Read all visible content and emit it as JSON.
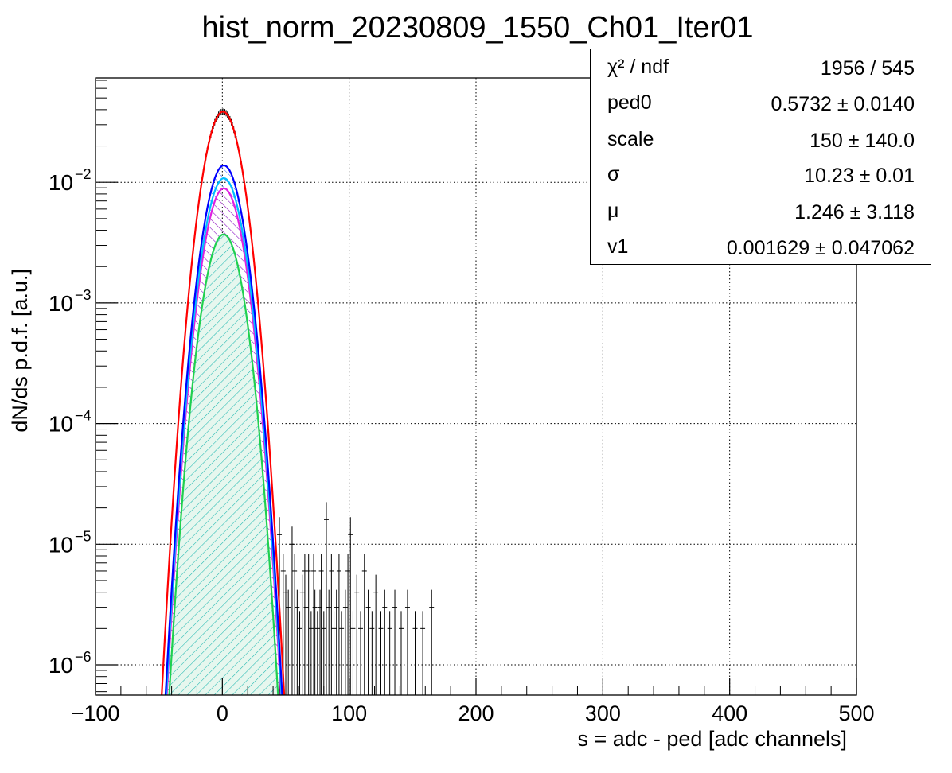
{
  "title": "hist_norm_20230809_1550_Ch01_Iter01",
  "xlabel": "s = adc - ped [adc channels]",
  "ylabel": "dN/ds p.d.f. [a.u.]",
  "stats": [
    {
      "name": "χ² / ndf",
      "value": "1956 / 545"
    },
    {
      "name": "ped0",
      "value": "0.5732 ± 0.0140"
    },
    {
      "name": "scale",
      "value": "150 ± 140.0"
    },
    {
      "name": "σ",
      "value": "10.23 ± 0.01"
    },
    {
      "name": "μ",
      "value": "1.246 ± 3.118"
    },
    {
      "name": "v1",
      "value": "0.001629 ± 0.047062"
    }
  ],
  "colors": {
    "total": "#ff0000",
    "blue": "#0000ff",
    "cyan": "#00bfff",
    "magenta": "#e020e0",
    "green": "#20d050",
    "data": "#000000"
  },
  "chart_data": {
    "type": "histogram",
    "log_y": true,
    "grid": true,
    "xlim": [
      -100,
      500
    ],
    "ylim": [
      5.5e-07,
      0.07
    ],
    "x_ticks": [
      {
        "v": -100,
        "label": "−100"
      },
      {
        "v": 0,
        "label": "0"
      },
      {
        "v": 100,
        "label": "100"
      },
      {
        "v": 200,
        "label": "200"
      },
      {
        "v": 300,
        "label": "300"
      },
      {
        "v": 400,
        "label": "400"
      },
      {
        "v": 500,
        "label": "500"
      }
    ],
    "y_ticks": [
      {
        "v": 1e-06,
        "base": "10",
        "exp": "−6"
      },
      {
        "v": 1e-05,
        "base": "10",
        "exp": "−5"
      },
      {
        "v": 0.0001,
        "base": "10",
        "exp": "−4"
      },
      {
        "v": 0.001,
        "base": "10",
        "exp": "−3"
      },
      {
        "v": 0.01,
        "base": "10",
        "exp": "−2"
      }
    ],
    "curves": [
      {
        "name": "total",
        "amp": 0.0385,
        "mu": 0.5,
        "sigma": 10.23,
        "color": "#ff0000"
      },
      {
        "name": "blue",
        "amp": 0.0138,
        "mu": 1.2,
        "sigma": 10.23,
        "color": "#0000ff",
        "hatch": "#0000ff"
      },
      {
        "name": "cyan",
        "amp": 0.0108,
        "mu": 1.2,
        "sigma": 10.23,
        "color": "#00bfff"
      },
      {
        "name": "magenta",
        "amp": 0.0089,
        "mu": 1.2,
        "sigma": 10.23,
        "color": "#e020e0",
        "hatch": "#e020e0"
      },
      {
        "name": "green",
        "amp": 0.0037,
        "mu": 1.0,
        "sigma": 10.23,
        "color": "#20d050",
        "hatch": "#20c0a0"
      }
    ],
    "tail_points": [
      {
        "x": 45,
        "y": 1.2e-05
      },
      {
        "x": 48,
        "y": 6e-06
      },
      {
        "x": 50,
        "y": 4e-06
      },
      {
        "x": 52,
        "y": 3e-06
      },
      {
        "x": 55,
        "y": 1e-05
      },
      {
        "x": 57,
        "y": 6e-06
      },
      {
        "x": 59,
        "y": 3e-06
      },
      {
        "x": 61,
        "y": 2e-06
      },
      {
        "x": 63,
        "y": 4e-06
      },
      {
        "x": 65,
        "y": 6e-06
      },
      {
        "x": 66,
        "y": 3e-06
      },
      {
        "x": 68,
        "y": 6e-06
      },
      {
        "x": 70,
        "y": 2e-06
      },
      {
        "x": 72,
        "y": 6e-06
      },
      {
        "x": 73,
        "y": 3e-06
      },
      {
        "x": 75,
        "y": 2e-06
      },
      {
        "x": 77,
        "y": 3e-06
      },
      {
        "x": 78,
        "y": 6e-06
      },
      {
        "x": 80,
        "y": 2e-06
      },
      {
        "x": 82,
        "y": 1.6e-05
      },
      {
        "x": 84,
        "y": 3e-06
      },
      {
        "x": 86,
        "y": 6e-06
      },
      {
        "x": 88,
        "y": 2e-06
      },
      {
        "x": 90,
        "y": 3e-06
      },
      {
        "x": 92,
        "y": 6e-06
      },
      {
        "x": 94,
        "y": 2e-06
      },
      {
        "x": 97,
        "y": 3e-06
      },
      {
        "x": 99,
        "y": 6e-06
      },
      {
        "x": 101,
        "y": 1.2e-05
      },
      {
        "x": 103,
        "y": 2e-06
      },
      {
        "x": 106,
        "y": 4e-06
      },
      {
        "x": 109,
        "y": 2e-06
      },
      {
        "x": 112,
        "y": 6e-06
      },
      {
        "x": 115,
        "y": 3e-06
      },
      {
        "x": 118,
        "y": 2e-06
      },
      {
        "x": 121,
        "y": 4e-06
      },
      {
        "x": 125,
        "y": 2e-06
      },
      {
        "x": 128,
        "y": 3e-06
      },
      {
        "x": 132,
        "y": 2e-06
      },
      {
        "x": 136,
        "y": 3e-06
      },
      {
        "x": 141,
        "y": 2e-06
      },
      {
        "x": 146,
        "y": 3e-06
      },
      {
        "x": 152,
        "y": 2e-06
      },
      {
        "x": 158,
        "y": 2e-06
      },
      {
        "x": 165,
        "y": 3e-06
      }
    ]
  }
}
